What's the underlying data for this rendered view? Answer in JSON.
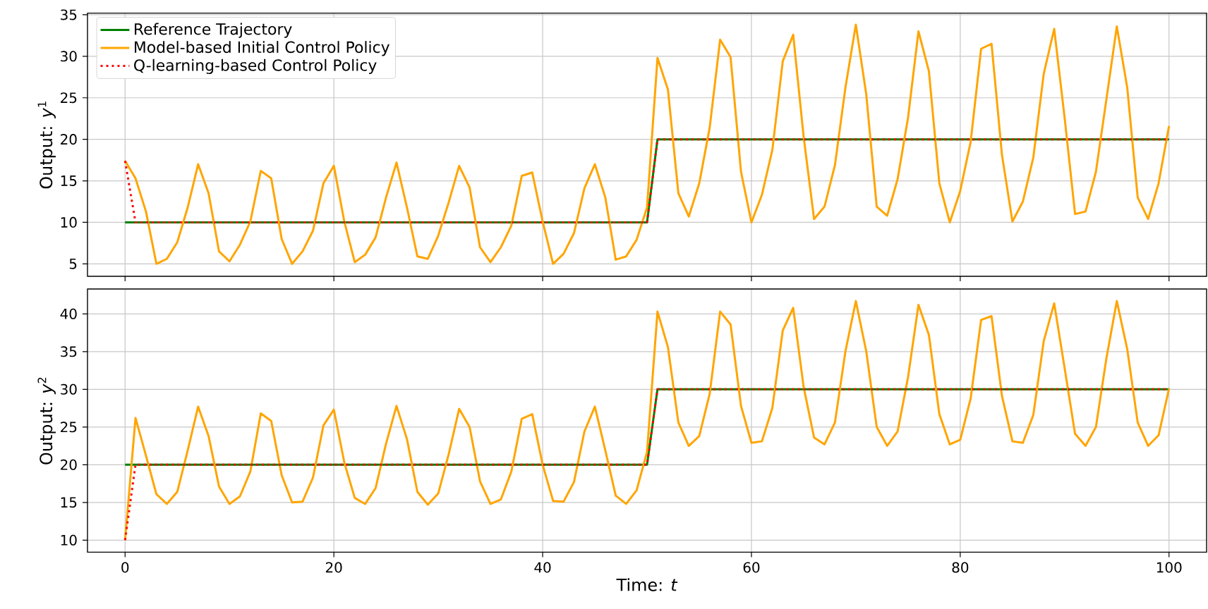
{
  "chart_data": [
    {
      "type": "line",
      "ylabel": "Output: *y*$^{1}$",
      "x": [
        0,
        1,
        2,
        3,
        4,
        5,
        6,
        7,
        8,
        9,
        10,
        11,
        12,
        13,
        14,
        15,
        16,
        17,
        18,
        19,
        20,
        21,
        22,
        23,
        24,
        25,
        26,
        27,
        28,
        29,
        30,
        31,
        32,
        33,
        34,
        35,
        36,
        37,
        38,
        39,
        40,
        41,
        42,
        43,
        44,
        45,
        46,
        47,
        48,
        49,
        50,
        51,
        52,
        53,
        54,
        55,
        56,
        57,
        58,
        59,
        60,
        61,
        62,
        63,
        64,
        65,
        66,
        67,
        68,
        69,
        70,
        71,
        72,
        73,
        74,
        75,
        76,
        77,
        78,
        79,
        80,
        81,
        82,
        83,
        84,
        85,
        86,
        87,
        88,
        89,
        90,
        91,
        92,
        93,
        94,
        95,
        96,
        97,
        98,
        99,
        100
      ],
      "series": [
        {
          "name": "Reference Trajectory",
          "color": "#008000",
          "line_style": "solid",
          "values": [
            10,
            10,
            10,
            10,
            10,
            10,
            10,
            10,
            10,
            10,
            10,
            10,
            10,
            10,
            10,
            10,
            10,
            10,
            10,
            10,
            10,
            10,
            10,
            10,
            10,
            10,
            10,
            10,
            10,
            10,
            10,
            10,
            10,
            10,
            10,
            10,
            10,
            10,
            10,
            10,
            10,
            10,
            10,
            10,
            10,
            10,
            10,
            10,
            10,
            10,
            10,
            20,
            20,
            20,
            20,
            20,
            20,
            20,
            20,
            20,
            20,
            20,
            20,
            20,
            20,
            20,
            20,
            20,
            20,
            20,
            20,
            20,
            20,
            20,
            20,
            20,
            20,
            20,
            20,
            20,
            20,
            20,
            20,
            20,
            20,
            20,
            20,
            20,
            20,
            20,
            20,
            20,
            20,
            20,
            20,
            20,
            20,
            20,
            20,
            20,
            20
          ]
        },
        {
          "name": "Model-based Initial Control Policy",
          "color": "#ffa500",
          "line_style": "solid",
          "values": [
            17.4,
            15.3,
            11.3,
            5.0,
            5.6,
            7.6,
            11.8,
            17.0,
            13.5,
            6.5,
            5.3,
            7.3,
            10.1,
            16.2,
            15.3,
            8.0,
            5.0,
            6.5,
            9.0,
            14.7,
            16.8,
            10.1,
            5.2,
            6.1,
            8.2,
            13.0,
            17.2,
            11.8,
            5.9,
            5.6,
            8.4,
            12.4,
            16.8,
            14.2,
            7.0,
            5.2,
            7.0,
            9.6,
            15.6,
            16.0,
            10.1,
            5.0,
            6.2,
            8.7,
            14.1,
            17.0,
            13.0,
            5.5,
            5.9,
            7.9,
            11.8,
            29.8,
            26.0,
            13.5,
            10.7,
            14.7,
            21.4,
            32.0,
            29.9,
            16.1,
            10.0,
            13.3,
            18.7,
            29.4,
            32.6,
            20.3,
            10.4,
            11.9,
            16.9,
            26.2,
            33.8,
            25.4,
            11.9,
            10.8,
            15.2,
            22.6,
            33.0,
            28.2,
            14.7,
            10.0,
            13.8,
            19.7,
            30.9,
            31.5,
            18.1,
            10.1,
            12.5,
            17.8,
            27.9,
            33.3,
            22.6,
            11.0,
            11.3,
            16.1,
            24.8,
            33.6,
            26.2,
            13.0,
            10.4,
            14.7,
            21.6
          ]
        },
        {
          "name": "Q-learning-based Control Policy",
          "color": "#ff0000",
          "line_style": "dotted",
          "values": [
            17.4,
            10,
            10,
            10,
            10,
            10,
            10,
            10,
            10,
            10,
            10,
            10,
            10,
            10,
            10,
            10,
            10,
            10,
            10,
            10,
            10,
            10,
            10,
            10,
            10,
            10,
            10,
            10,
            10,
            10,
            10,
            10,
            10,
            10,
            10,
            10,
            10,
            10,
            10,
            10,
            10,
            10,
            10,
            10,
            10,
            10,
            10,
            10,
            10,
            10,
            10,
            20,
            20,
            20,
            20,
            20,
            20,
            20,
            20,
            20,
            20,
            20,
            20,
            20,
            20,
            20,
            20,
            20,
            20,
            20,
            20,
            20,
            20,
            20,
            20,
            20,
            20,
            20,
            20,
            20,
            20,
            20,
            20,
            20,
            20,
            20,
            20,
            20,
            20,
            20,
            20,
            20,
            20,
            20,
            20,
            20,
            20,
            20,
            20,
            20,
            20
          ]
        }
      ],
      "xlim": [
        -3.6,
        103.6
      ],
      "ylim": [
        3.5,
        35.2
      ],
      "xticks": [
        0,
        20,
        40,
        60,
        80,
        100
      ],
      "yticks": [
        5,
        10,
        15,
        20,
        25,
        30,
        35
      ],
      "grid": true,
      "legend": "top left",
      "tick_labels": "y"
    },
    {
      "type": "line",
      "xlabel": "Time: *t*",
      "ylabel": "Output: *y*$^{2}$",
      "x": [
        0,
        1,
        2,
        3,
        4,
        5,
        6,
        7,
        8,
        9,
        10,
        11,
        12,
        13,
        14,
        15,
        16,
        17,
        18,
        19,
        20,
        21,
        22,
        23,
        24,
        25,
        26,
        27,
        28,
        29,
        30,
        31,
        32,
        33,
        34,
        35,
        36,
        37,
        38,
        39,
        40,
        41,
        42,
        43,
        44,
        45,
        46,
        47,
        48,
        49,
        50,
        51,
        52,
        53,
        54,
        55,
        56,
        57,
        58,
        59,
        60,
        61,
        62,
        63,
        64,
        65,
        66,
        67,
        68,
        69,
        70,
        71,
        72,
        73,
        74,
        75,
        76,
        77,
        78,
        79,
        80,
        81,
        82,
        83,
        84,
        85,
        86,
        87,
        88,
        89,
        90,
        91,
        92,
        93,
        94,
        95,
        96,
        97,
        98,
        99,
        100
      ],
      "series": [
        {
          "color": "#008000",
          "line_style": "solid",
          "values": [
            20,
            20,
            20,
            20,
            20,
            20,
            20,
            20,
            20,
            20,
            20,
            20,
            20,
            20,
            20,
            20,
            20,
            20,
            20,
            20,
            20,
            20,
            20,
            20,
            20,
            20,
            20,
            20,
            20,
            20,
            20,
            20,
            20,
            20,
            20,
            20,
            20,
            20,
            20,
            20,
            20,
            20,
            20,
            20,
            20,
            20,
            20,
            20,
            20,
            20,
            20,
            30,
            30,
            30,
            30,
            30,
            30,
            30,
            30,
            30,
            30,
            30,
            30,
            30,
            30,
            30,
            30,
            30,
            30,
            30,
            30,
            30,
            30,
            30,
            30,
            30,
            30,
            30,
            30,
            30,
            30,
            30,
            30,
            30,
            30,
            30,
            30,
            30,
            30,
            30,
            30,
            30,
            30,
            30,
            30,
            30,
            30,
            30,
            30,
            30,
            30
          ]
        },
        {
          "color": "#ffa500",
          "line_style": "solid",
          "values": [
            10.0,
            26.2,
            21.2,
            16.1,
            14.8,
            16.4,
            21.9,
            27.7,
            23.8,
            17.1,
            14.8,
            15.8,
            19.1,
            26.8,
            25.8,
            18.6,
            15.0,
            15.1,
            18.3,
            25.2,
            27.3,
            20.3,
            15.6,
            14.8,
            16.9,
            22.8,
            27.8,
            23.4,
            16.4,
            14.7,
            16.2,
            21.4,
            27.4,
            25.0,
            17.8,
            14.8,
            15.4,
            19.1,
            26.1,
            26.7,
            20.0,
            15.2,
            15.1,
            17.7,
            24.4,
            27.7,
            21.9,
            15.9,
            14.8,
            16.6,
            21.7,
            40.3,
            35.6,
            25.6,
            22.5,
            23.8,
            29.4,
            40.3,
            38.6,
            27.8,
            22.9,
            23.1,
            27.5,
            37.8,
            40.8,
            30.3,
            23.6,
            22.7,
            25.6,
            35.0,
            41.7,
            35.0,
            25.0,
            22.5,
            24.4,
            31.6,
            41.2,
            37.2,
            26.7,
            22.7,
            23.3,
            28.8,
            39.2,
            39.7,
            29.1,
            23.1,
            22.9,
            26.6,
            36.4,
            41.4,
            32.8,
            24.1,
            22.5,
            25.0,
            34.1,
            41.7,
            35.3,
            25.6,
            22.5,
            23.9,
            30.1
          ]
        },
        {
          "color": "#ff0000",
          "line_style": "dotted",
          "values": [
            10,
            20,
            20,
            20,
            20,
            20,
            20,
            20,
            20,
            20,
            20,
            20,
            20,
            20,
            20,
            20,
            20,
            20,
            20,
            20,
            20,
            20,
            20,
            20,
            20,
            20,
            20,
            20,
            20,
            20,
            20,
            20,
            20,
            20,
            20,
            20,
            20,
            20,
            20,
            20,
            20,
            20,
            20,
            20,
            20,
            20,
            20,
            20,
            20,
            20,
            20,
            30,
            30,
            30,
            30,
            30,
            30,
            30,
            30,
            30,
            30,
            30,
            30,
            30,
            30,
            30,
            30,
            30,
            30,
            30,
            30,
            30,
            30,
            30,
            30,
            30,
            30,
            30,
            30,
            30,
            30,
            30,
            30,
            30,
            30,
            30,
            30,
            30,
            30,
            30,
            30,
            30,
            30,
            30,
            30,
            30,
            30,
            30,
            30,
            30,
            30
          ]
        }
      ],
      "xlim": [
        -3.6,
        103.6
      ],
      "ylim": [
        8.4,
        43.3
      ],
      "xticks": [
        0,
        20,
        40,
        60,
        80,
        100
      ],
      "yticks": [
        10,
        15,
        20,
        25,
        30,
        35,
        40
      ],
      "grid": true
    }
  ]
}
